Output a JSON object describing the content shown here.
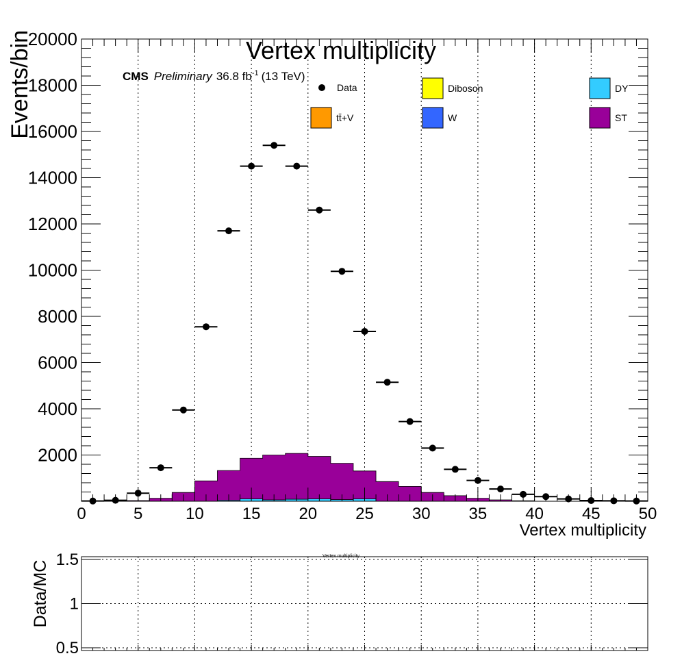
{
  "chart_data": [
    {
      "type": "histogram",
      "title": "Vertex multiplicity",
      "xlabel": "Vertex multiplicity",
      "ylabel": "Events/bin",
      "xlim": [
        0,
        50
      ],
      "ylim": [
        0,
        20000
      ],
      "x_ticks": [
        "0",
        "5",
        "10",
        "15",
        "20",
        "25",
        "30",
        "35",
        "40",
        "45",
        "50"
      ],
      "y_ticks": [
        "2000",
        "4000",
        "6000",
        "8000",
        "10000",
        "12000",
        "14000",
        "16000",
        "18000",
        "20000"
      ],
      "grid": "vertical",
      "cms_label": "CMS",
      "prelim_label": "Preliminary",
      "lumi_value": "36.8 fb",
      "lumi_exp": "-1",
      "lumi_energy": "(13 TeV)",
      "legend": [
        {
          "label": "Data",
          "type": "marker",
          "color": "#000000"
        },
        {
          "label": "Diboson",
          "type": "box",
          "color": "#ffff00"
        },
        {
          "label": "DY",
          "type": "box",
          "color": "#33ccff"
        },
        {
          "label": "tt̄+V",
          "type": "box",
          "color": "#ff9900"
        },
        {
          "label": "W",
          "type": "box",
          "color": "#3366ff"
        },
        {
          "label": "ST",
          "type": "box",
          "color": "#990099"
        }
      ],
      "bin_width": 2,
      "bin_centers": [
        1,
        3,
        5,
        7,
        9,
        11,
        13,
        15,
        17,
        19,
        21,
        23,
        25,
        27,
        29,
        31,
        33,
        35,
        37,
        39,
        41,
        43,
        45,
        47,
        49
      ],
      "stack": [
        {
          "name": "DY",
          "color": "#33ccff",
          "values": [
            0,
            0,
            0,
            0,
            0,
            0,
            40,
            100,
            60,
            90,
            100,
            70,
            100,
            0,
            0,
            0,
            0,
            0,
            0,
            0,
            0,
            0,
            0,
            0,
            0
          ]
        },
        {
          "name": "ST",
          "color": "#990099",
          "values": [
            0,
            0,
            30,
            130,
            380,
            880,
            1290,
            1760,
            1940,
            1980,
            1840,
            1570,
            1210,
            850,
            640,
            380,
            240,
            130,
            60,
            20,
            0,
            0,
            0,
            0,
            0
          ]
        }
      ],
      "data_series": {
        "name": "Data",
        "values": [
          10,
          40,
          350,
          1450,
          3950,
          7550,
          11700,
          14500,
          15400,
          14500,
          12600,
          9950,
          7350,
          5150,
          3450,
          2300,
          1380,
          900,
          530,
          300,
          200,
          100,
          30,
          20,
          10
        ]
      }
    },
    {
      "type": "ratio",
      "title": "Vertex multiplicity",
      "ylabel": "Data/MC",
      "ylim": [
        0.5,
        1.5
      ],
      "y_ticks": [
        "0.5",
        "1",
        "1.5"
      ],
      "grid": "both",
      "values": []
    }
  ]
}
